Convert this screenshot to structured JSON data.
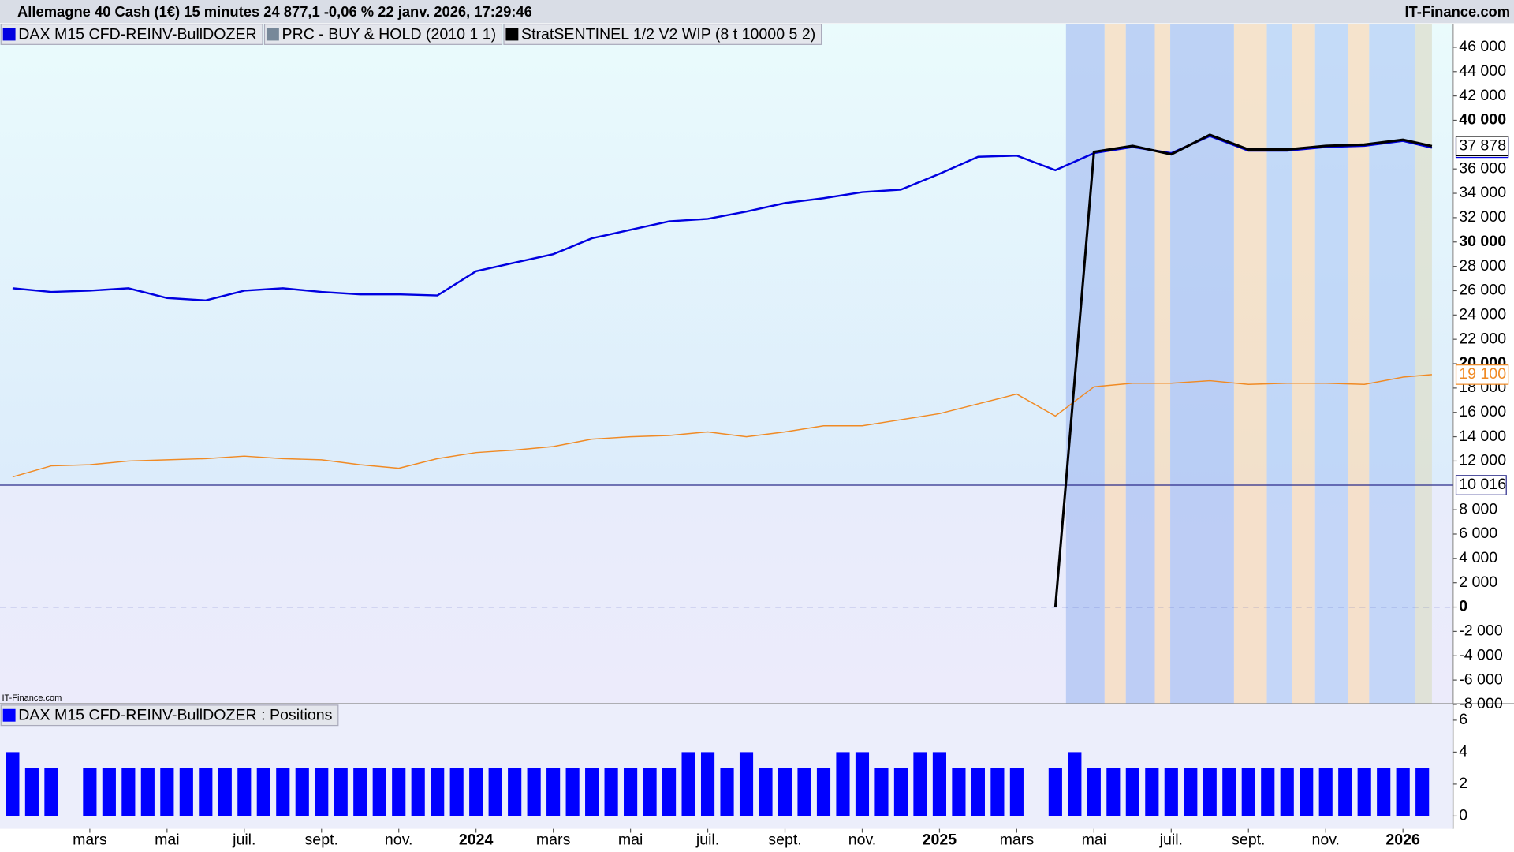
{
  "header": {
    "title": "Allemagne 40 Cash (1€) 15 minutes 24 877,1 -0,06 % 22 janv. 2026, 17:29:46",
    "brand": "IT-Finance.com",
    "watermark": "IT-Finance.com"
  },
  "chart_data": [
    {
      "type": "line",
      "x": [
        0,
        1,
        2,
        3,
        4,
        5,
        6,
        7,
        8,
        9,
        10,
        11,
        12,
        13,
        14,
        15,
        16,
        17,
        18,
        19,
        20,
        21,
        22,
        23,
        24,
        25,
        26,
        27,
        28,
        29,
        30,
        31,
        32,
        33,
        34,
        35,
        36,
        36.75
      ],
      "series": [
        {
          "name": "DAX M15 CFD-REINV-BullDOZER",
          "color": "#0000e0",
          "legend_color": "#0000e0",
          "values": [
            26200,
            25900,
            26000,
            26200,
            25400,
            25200,
            26000,
            26200,
            25900,
            25700,
            25700,
            25600,
            27600,
            28300,
            29000,
            30300,
            31000,
            31700,
            31900,
            32500,
            33200,
            33600,
            34100,
            34300,
            35600,
            37000,
            37100,
            35900,
            37300,
            37800,
            37300,
            38700,
            37500,
            37500,
            37800,
            37900,
            38300,
            37740
          ],
          "value_labels": [
            null,
            null,
            null,
            null,
            null,
            null,
            null,
            null,
            null,
            null,
            null,
            null,
            null,
            null,
            null,
            null,
            null,
            null,
            null,
            null,
            null,
            null,
            null,
            null,
            null,
            null,
            null,
            null,
            null,
            null,
            null,
            null,
            null,
            null,
            null,
            null,
            null,
            "37 740"
          ]
        },
        {
          "name": "PRC - BUY & HOLD (2010 1 1)",
          "color": "#f08a24",
          "legend_color": "#778899",
          "values": [
            10700,
            11600,
            11700,
            12000,
            12100,
            12200,
            12400,
            12200,
            12100,
            11700,
            11400,
            12200,
            12700,
            12900,
            13200,
            13800,
            14000,
            14100,
            14400,
            14000,
            14400,
            14900,
            14900,
            15400,
            15900,
            16700,
            17500,
            15700,
            18100,
            18400,
            18400,
            18600,
            18300,
            18400,
            18400,
            18300,
            18900,
            19100
          ],
          "value_labels": [
            null,
            null,
            null,
            null,
            null,
            null,
            null,
            null,
            null,
            null,
            null,
            null,
            null,
            null,
            null,
            null,
            null,
            null,
            null,
            null,
            null,
            null,
            null,
            null,
            null,
            null,
            null,
            null,
            null,
            null,
            null,
            null,
            null,
            null,
            null,
            null,
            null,
            "19 100"
          ]
        },
        {
          "name": "StratSENTINEL 1/2 V2 WIP (8 t 10000 5 2)",
          "color": "#000000",
          "legend_color": "#000000",
          "values": [
            null,
            null,
            null,
            null,
            null,
            null,
            null,
            null,
            null,
            null,
            null,
            null,
            null,
            null,
            null,
            null,
            null,
            null,
            null,
            null,
            null,
            null,
            null,
            null,
            null,
            null,
            null,
            0,
            37400,
            37900,
            37200,
            38800,
            37600,
            37600,
            37900,
            38000,
            38400,
            37878
          ],
          "value_labels": [
            null,
            null,
            null,
            null,
            null,
            null,
            null,
            null,
            null,
            null,
            null,
            null,
            null,
            null,
            null,
            null,
            null,
            null,
            null,
            null,
            null,
            null,
            null,
            null,
            null,
            null,
            null,
            null,
            null,
            null,
            null,
            null,
            null,
            null,
            null,
            null,
            null,
            "37 878"
          ]
        }
      ],
      "xlim": [
        -0.325,
        37.3
      ],
      "ylim": [
        -7900,
        47900
      ],
      "yticks": [
        {
          "value": -8000,
          "label": "-8 000"
        },
        {
          "value": -6000,
          "label": "-6 000"
        },
        {
          "value": -4000,
          "label": "-4 000"
        },
        {
          "value": -2000,
          "label": "-2 000"
        },
        0,
        {
          "value": 2000,
          "label": "2 000"
        },
        {
          "value": 4000,
          "label": "4 000"
        },
        {
          "value": 6000,
          "label": "6 000"
        },
        {
          "value": 8000,
          "label": "8 000"
        },
        {
          "value": 12000,
          "label": "12 000"
        },
        {
          "value": 14000,
          "label": "14 000"
        },
        {
          "value": 16000,
          "label": "16 000"
        },
        {
          "value": 18000,
          "label": "18 000"
        },
        {
          "value": 20000,
          "label": "20 000"
        },
        {
          "value": 22000,
          "label": "22 000"
        },
        {
          "value": 24000,
          "label": "24 000"
        },
        {
          "value": 26000,
          "label": "26 000"
        },
        {
          "value": 28000,
          "label": "28 000"
        },
        {
          "value": 30000,
          "label": "30 000"
        },
        {
          "value": 32000,
          "label": "32 000"
        },
        {
          "value": 34000,
          "label": "34 000"
        },
        {
          "value": 36000,
          "label": "36 000"
        },
        {
          "value": 40000,
          "label": "40 000"
        },
        {
          "value": 42000,
          "label": "42 000"
        },
        {
          "value": 44000,
          "label": "44 000"
        },
        {
          "value": 46000,
          "label": "46 000"
        }
      ],
      "hlines": [
        {
          "value": 10016,
          "label": "10 016",
          "style": "solid"
        },
        {
          "value": 0,
          "style": "dashed"
        }
      ]
    },
    {
      "type": "bar",
      "title": "DAX M15 CFD-REINV-BullDOZER : Positions",
      "color": "#0000ff",
      "x": [
        0,
        0.5,
        1,
        1.5,
        2,
        2.5,
        3,
        3.5,
        4,
        4.5,
        5,
        5.5,
        6,
        6.5,
        7,
        7.5,
        8,
        8.5,
        9,
        9.5,
        10,
        10.5,
        11,
        11.5,
        12,
        12.5,
        13,
        13.5,
        14,
        14.5,
        15,
        15.5,
        16,
        16.5,
        17,
        17.5,
        18,
        18.5,
        19,
        19.5,
        20,
        20.5,
        21,
        21.5,
        22,
        22.5,
        23,
        23.5,
        24,
        24.5,
        25,
        25.5,
        26,
        26.5,
        27,
        27.5,
        28,
        28.5,
        29,
        29.5,
        30,
        30.5,
        31,
        31.5,
        32,
        32.5,
        33,
        33.5,
        34,
        34.5,
        35,
        35.5,
        36,
        36.5
      ],
      "values": [
        4,
        3,
        3,
        0,
        3,
        3,
        3,
        3,
        3,
        3,
        3,
        3,
        3,
        3,
        3,
        3,
        3,
        3,
        3,
        3,
        3,
        3,
        3,
        3,
        3,
        3,
        3,
        3,
        3,
        3,
        3,
        3,
        3,
        3,
        3,
        4,
        4,
        3,
        4,
        3,
        3,
        3,
        3,
        4,
        4,
        3,
        3,
        4,
        4,
        3,
        3,
        3,
        3,
        0,
        3,
        4,
        3,
        3,
        3,
        3,
        3,
        3,
        3,
        3,
        3,
        3,
        3,
        3,
        3,
        3,
        3,
        3,
        3,
        3
      ],
      "xlim": [
        -0.325,
        37.3
      ],
      "ylim": [
        -0.8,
        7
      ],
      "yticks": [
        0,
        2,
        4,
        6
      ],
      "xticks": [
        {
          "value": 2,
          "label": "mars"
        },
        {
          "value": 4,
          "label": "mai"
        },
        {
          "value": 6,
          "label": "juil."
        },
        {
          "value": 8,
          "label": "sept."
        },
        {
          "value": 10,
          "label": "nov."
        },
        {
          "value": 12,
          "label": "2024"
        },
        {
          "value": 14,
          "label": "mars"
        },
        {
          "value": 16,
          "label": "mai"
        },
        {
          "value": 18,
          "label": "juil."
        },
        {
          "value": 20,
          "label": "sept."
        },
        {
          "value": 22,
          "label": "nov."
        },
        {
          "value": 24,
          "label": "2025"
        },
        {
          "value": 26,
          "label": "mars"
        },
        {
          "value": 28,
          "label": "mai"
        },
        {
          "value": 30,
          "label": "juil."
        },
        {
          "value": 32,
          "label": "sept."
        },
        {
          "value": 34,
          "label": "nov."
        },
        {
          "value": 36,
          "label": "2026"
        }
      ]
    }
  ]
}
